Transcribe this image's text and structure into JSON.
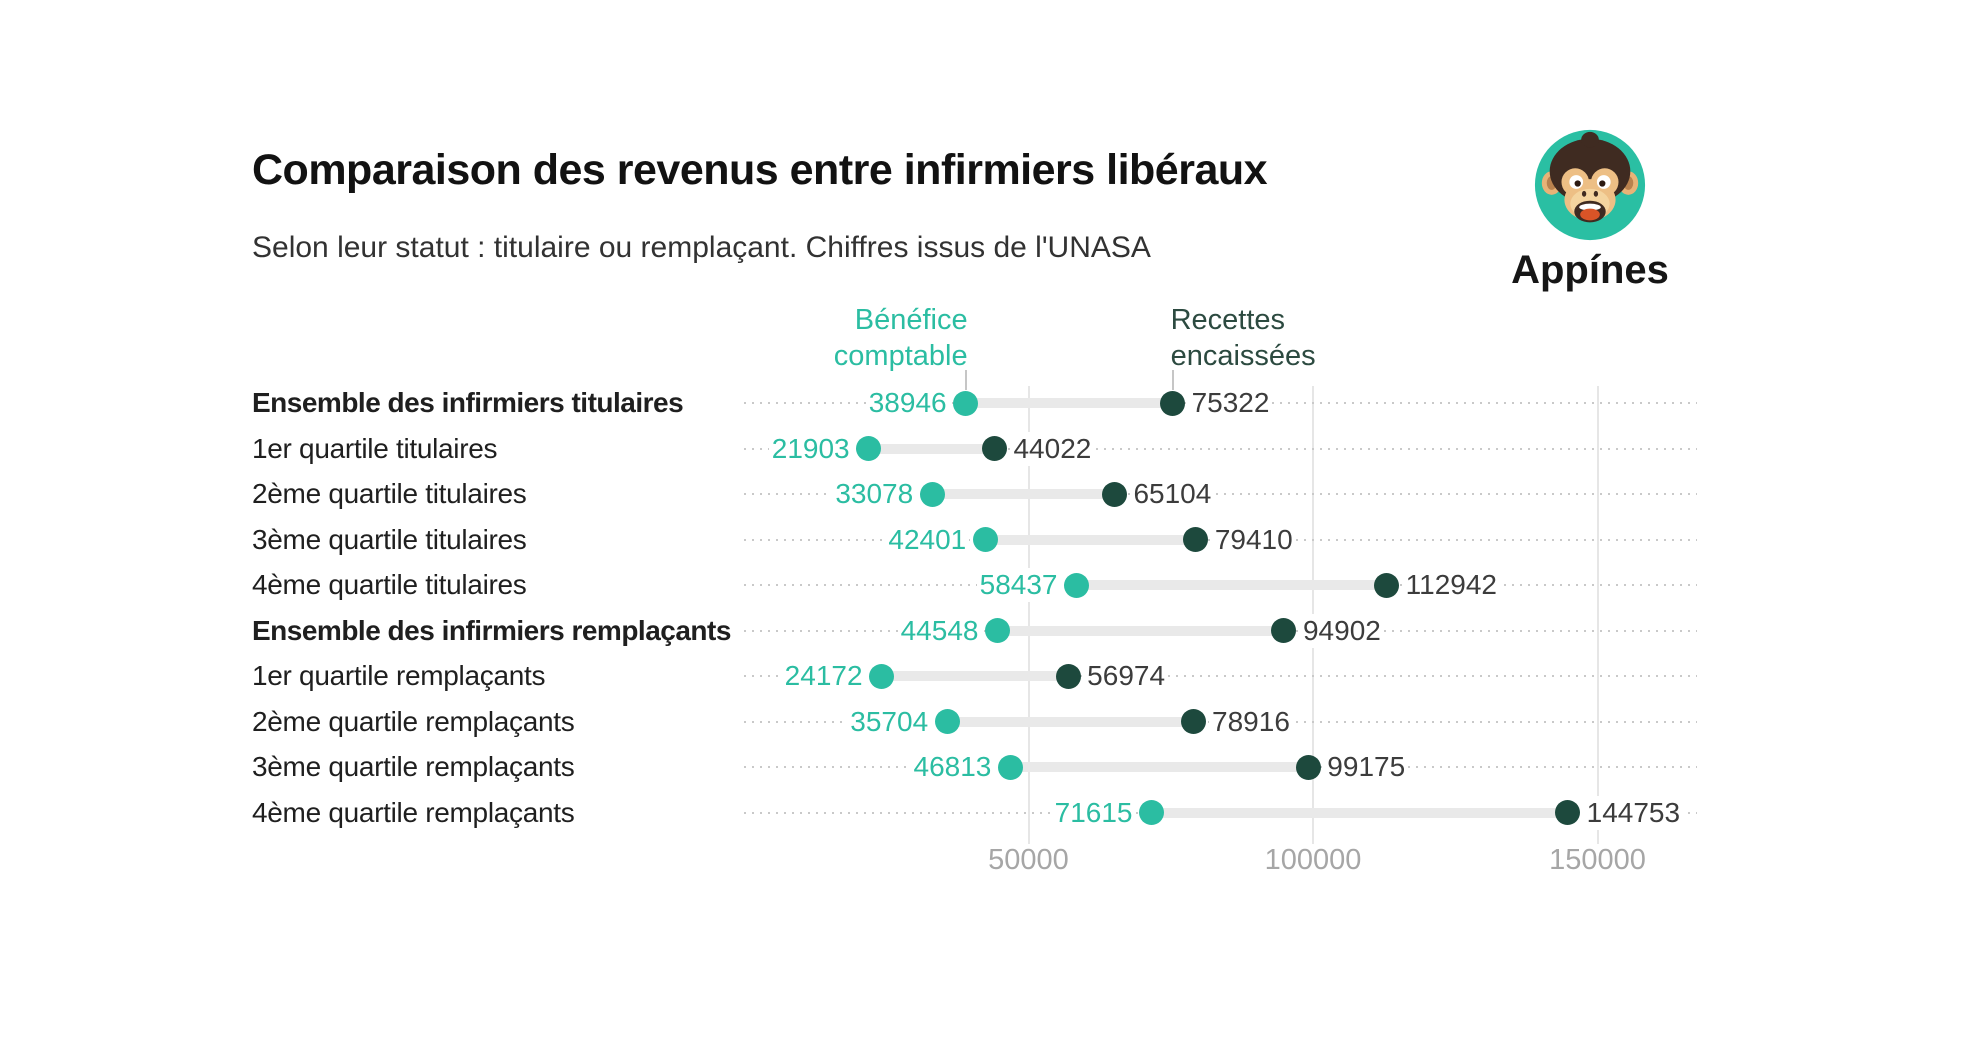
{
  "header": {
    "title": "Comparaison des revenus entre infirmiers libéraux",
    "subtitle": "Selon leur statut : titulaire ou remplaçant. Chiffres issus de l'UNASA"
  },
  "logo": {
    "brand": "Appínes"
  },
  "chart_data": {
    "type": "dumbbell",
    "title": "Comparaison des revenus entre infirmiers libéraux",
    "subtitle": "Selon leur statut : titulaire ou remplaçant. Chiffres issus de l'UNASA",
    "source": "UNASA",
    "legend_position": "top",
    "grid": "vertical-solid-plus-horizontal-dotted",
    "xlim": [
      0,
      167000
    ],
    "x_ticks": [
      {
        "value": 50000,
        "label": "50000"
      },
      {
        "value": 100000,
        "label": "100000"
      },
      {
        "value": 150000,
        "label": "150000"
      }
    ],
    "categories": [
      "Ensemble des infirmiers titulaires",
      "1er quartile titulaires",
      "2ème quartile titulaires",
      "3ème quartile titulaires",
      "4ème quartile titulaires",
      "Ensemble des infirmiers remplaçants",
      "1er quartile remplaçants",
      "2ème quartile remplaçants",
      "3ème quartile remplaçants",
      "4ème quartile remplaçants"
    ],
    "series": [
      {
        "name": "Bénéfice comptable",
        "color": "#2bbda2",
        "values": [
          38946,
          21903,
          33078,
          42401,
          58437,
          44548,
          24172,
          35704,
          46813,
          71615
        ]
      },
      {
        "name": "Recettes encaissées",
        "color": "#1d493d",
        "values": [
          75322,
          44022,
          65104,
          79410,
          112942,
          94902,
          56974,
          78916,
          99175,
          144753
        ]
      }
    ],
    "rows": [
      {
        "label": "Ensemble des infirmiers titulaires",
        "bold": true,
        "benefice": 38946,
        "recettes": 75322
      },
      {
        "label": "1er quartile titulaires",
        "bold": false,
        "benefice": 21903,
        "recettes": 44022
      },
      {
        "label": "2ème quartile titulaires",
        "bold": false,
        "benefice": 33078,
        "recettes": 65104
      },
      {
        "label": "3ème quartile titulaires",
        "bold": false,
        "benefice": 42401,
        "recettes": 79410
      },
      {
        "label": "4ème quartile titulaires",
        "bold": false,
        "benefice": 58437,
        "recettes": 112942
      },
      {
        "label": "Ensemble des infirmiers remplaçants",
        "bold": true,
        "benefice": 44548,
        "recettes": 94902
      },
      {
        "label": "1er quartile remplaçants",
        "bold": false,
        "benefice": 24172,
        "recettes": 56974
      },
      {
        "label": "2ème quartile remplaçants",
        "bold": false,
        "benefice": 35704,
        "recettes": 78916
      },
      {
        "label": "3ème quartile remplaçants",
        "bold": false,
        "benefice": 46813,
        "recettes": 99175
      },
      {
        "label": "4ème quartile remplaçants",
        "bold": false,
        "benefice": 71615,
        "recettes": 144753
      }
    ],
    "colors": {
      "benefice": "#2bbda2",
      "recettes_dot": "#1d493d",
      "recettes_header": "#2c4a40",
      "value_text": "#3c3c3c",
      "category_text": "#1f1f1f",
      "connector": "#e9e9e9",
      "grid": "#e6e6e6",
      "dotted": "#c9c9c9",
      "axis_text": "#a6a6a6"
    }
  }
}
